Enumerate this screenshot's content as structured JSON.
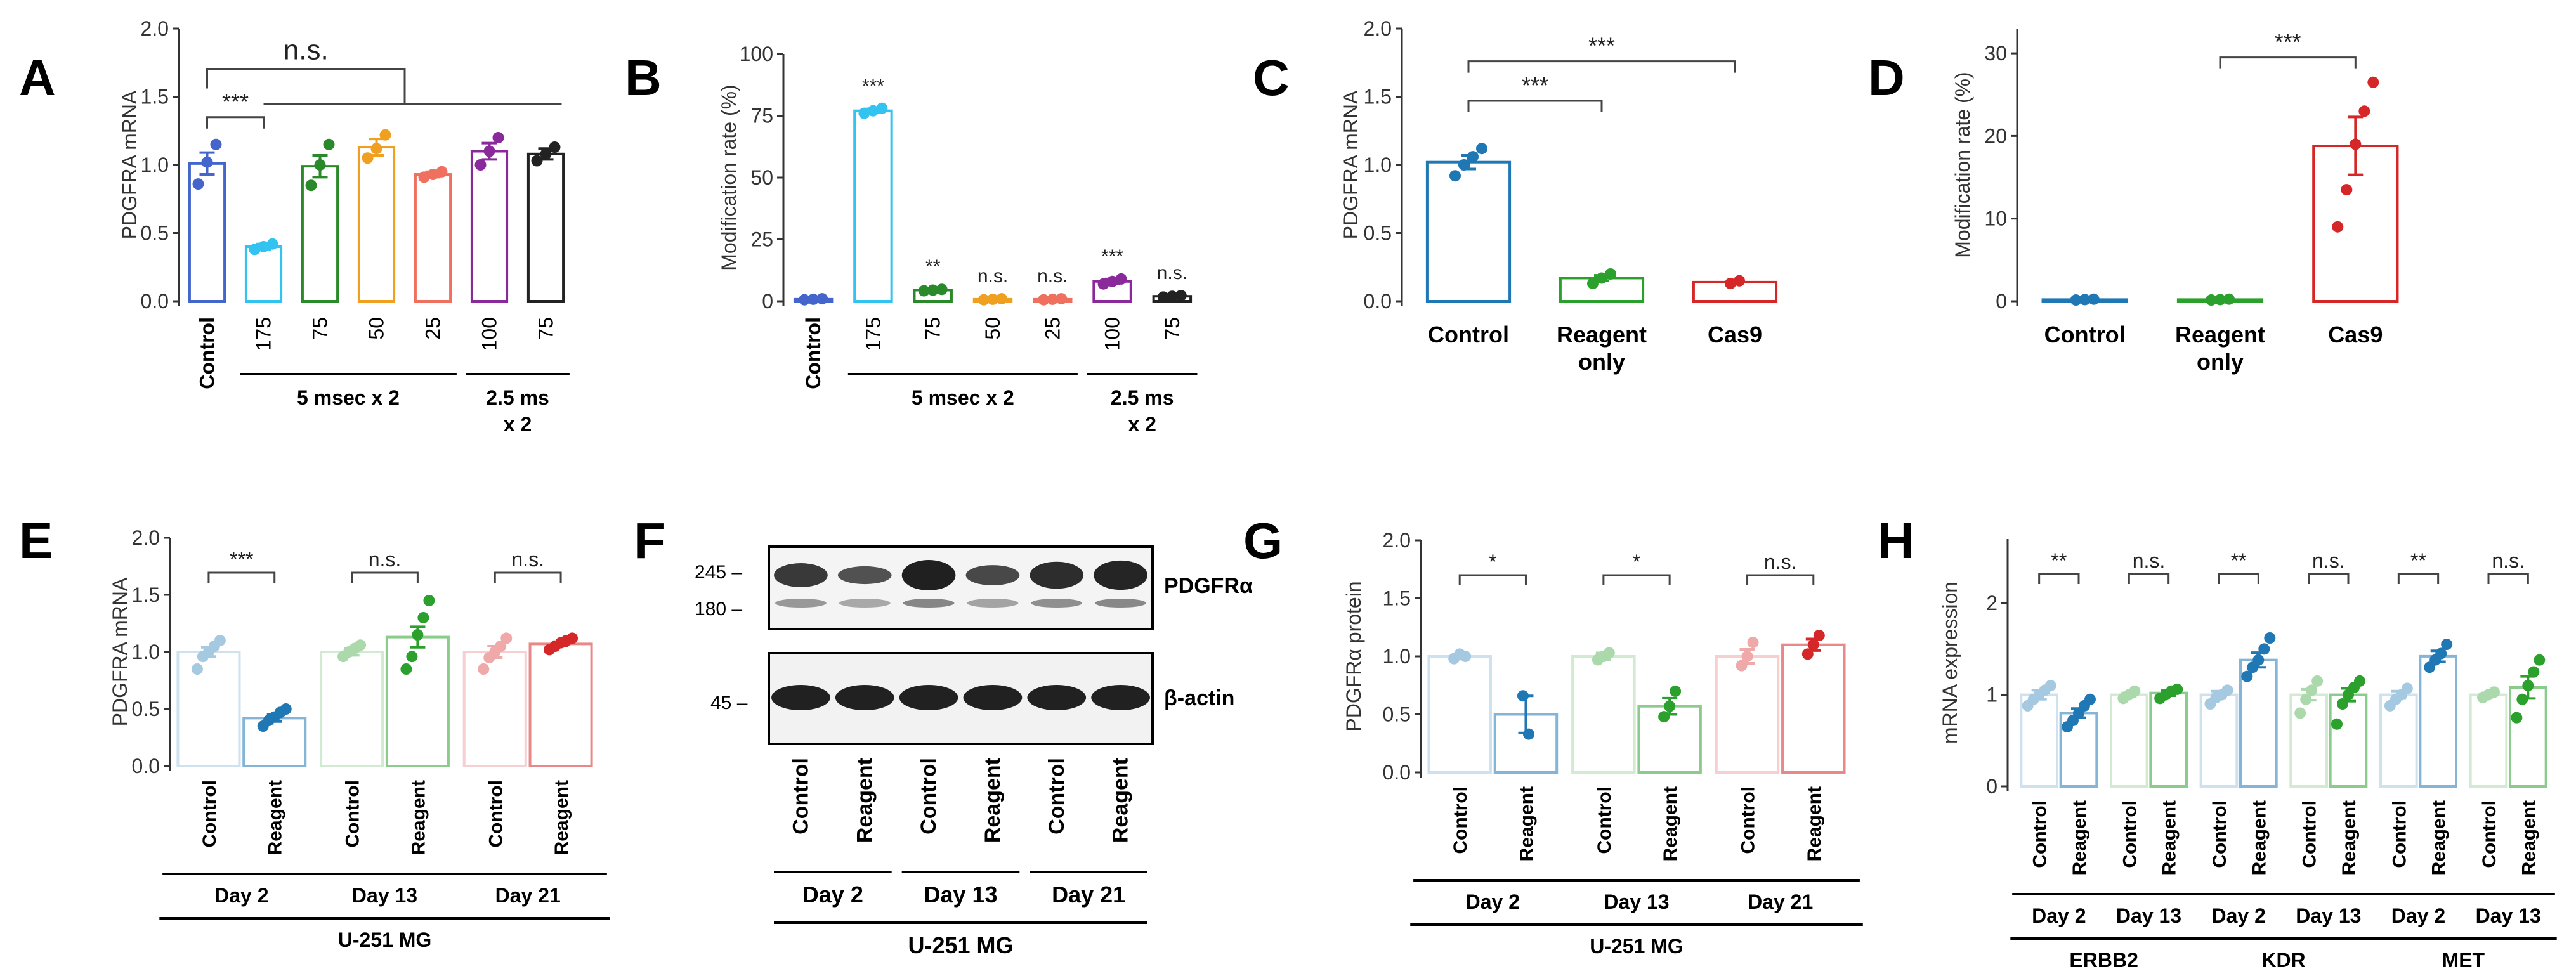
{
  "panels": [
    {
      "id": "A",
      "letter": "A",
      "x": [
        140,
        305
      ],
      "ylabel": "PDGFRA mRNA",
      "ylim": [
        0,
        2.0
      ],
      "ticks": [
        "0.0",
        "0.5",
        "1.0",
        "1.5",
        "2.0"
      ],
      "axis": {
        "y0": 475,
        "y1": 45,
        "xL": 282,
        "xR": 905
      },
      "bars": [
        {
          "label": "Control",
          "value": 1.01,
          "err": 0.08,
          "color": "#4466cc",
          "pts": [
            0.86,
            1.02,
            1.15
          ]
        },
        {
          "label": "175",
          "value": 0.4,
          "err": 0.02,
          "color": "#33c3f0",
          "pts": [
            0.38,
            0.4,
            0.42
          ]
        },
        {
          "label": "75",
          "value": 0.99,
          "err": 0.08,
          "color": "#2a8a2a",
          "pts": [
            0.85,
            1.0,
            1.15
          ]
        },
        {
          "label": "50",
          "value": 1.13,
          "err": 0.06,
          "color": "#f0a020",
          "pts": [
            1.05,
            1.12,
            1.22
          ]
        },
        {
          "label": "25",
          "value": 0.93,
          "err": 0.02,
          "color": "#f07060",
          "pts": [
            0.91,
            0.93,
            0.95
          ]
        },
        {
          "label": "100",
          "value": 1.1,
          "err": 0.06,
          "color": "#8a2a9a",
          "pts": [
            1.0,
            1.1,
            1.2
          ]
        },
        {
          "label": "75",
          "value": 1.08,
          "err": 0.04,
          "color": "#222222",
          "pts": [
            1.03,
            1.08,
            1.13
          ]
        }
      ],
      "brackets": [
        {
          "label": "***",
          "from": 0,
          "to": 1,
          "y": 1.35
        },
        {
          "label": "n.s.",
          "from": 0,
          "to": 3.5,
          "y": 1.7,
          "wide": true
        }
      ],
      "groups": [
        {
          "label": "5 msec x 2",
          "from": 1,
          "to": 4
        },
        {
          "label": "2.5 ms",
          "label2": "x 2",
          "from": 5,
          "to": 6
        }
      ],
      "firstLabelRotated": true
    },
    {
      "id": "B",
      "letter": "B",
      "ylabel": "Modification rate (%)",
      "ylim": [
        0,
        100
      ],
      "ticks": [
        "0",
        "25",
        "50",
        "75",
        "100"
      ],
      "axis": {
        "y0": 475,
        "y1": 85,
        "xL": 1235,
        "xR": 1895
      },
      "bars": [
        {
          "label": "Control",
          "value": 0.8,
          "err": 0.2,
          "color": "#4466cc",
          "pts": [
            0.6,
            0.8,
            1.0
          ],
          "sig": ""
        },
        {
          "label": "175",
          "value": 77,
          "err": 0.8,
          "color": "#33c3f0",
          "pts": [
            76,
            77,
            78
          ],
          "sig": "***"
        },
        {
          "label": "75",
          "value": 4.5,
          "err": 0.4,
          "color": "#2a8a2a",
          "pts": [
            4.2,
            4.5,
            4.8
          ],
          "sig": "**"
        },
        {
          "label": "50",
          "value": 0.8,
          "err": 0.2,
          "color": "#f0a020",
          "pts": [
            0.6,
            0.8,
            1.0
          ],
          "sig": "n.s."
        },
        {
          "label": "25",
          "value": 0.8,
          "err": 0.2,
          "color": "#f07060",
          "pts": [
            0.6,
            0.8,
            1.0
          ],
          "sig": "n.s."
        },
        {
          "label": "100",
          "value": 8,
          "err": 1.0,
          "color": "#8a2a9a",
          "pts": [
            7,
            8,
            9
          ],
          "sig": "***"
        },
        {
          "label": "75",
          "value": 2,
          "err": 0.3,
          "color": "#222222",
          "pts": [
            1.7,
            2,
            2.3
          ],
          "sig": "n.s."
        }
      ],
      "groups": [
        {
          "label": "5 msec x 2",
          "from": 1,
          "to": 4
        },
        {
          "label": "2.5 ms",
          "label2": "x 2",
          "from": 5,
          "to": 6
        }
      ],
      "firstLabelRotated": true
    },
    {
      "id": "C",
      "letter": "C",
      "ylabel": "PDGFRA mRNA",
      "ylim": [
        0,
        2.0
      ],
      "ticks": [
        "0.0",
        "0.5",
        "1.0",
        "1.5",
        "2.0"
      ],
      "axis": {
        "y0": 475,
        "y1": 45,
        "xL": 2210,
        "xR": 2840
      },
      "bars": [
        {
          "label": "Control",
          "value": 1.02,
          "err": 0.05,
          "color": "#1f77b4",
          "pts": [
            0.92,
            1.0,
            1.06,
            1.12
          ]
        },
        {
          "label": "Reagent",
          "label2": "only",
          "value": 0.17,
          "err": 0.02,
          "color": "#2ca02c",
          "pts": [
            0.13,
            0.17,
            0.2
          ]
        },
        {
          "label": "Cas9",
          "value": 0.14,
          "err": 0.01,
          "color": "#d62728",
          "pts": [
            0.13,
            0.15
          ]
        }
      ],
      "brackets": [
        {
          "label": "***",
          "from": 0,
          "to": 1,
          "y": 1.47
        },
        {
          "label": "***",
          "from": 0,
          "to": 2,
          "y": 1.76
        }
      ]
    },
    {
      "id": "D",
      "letter": "D",
      "ylabel": "Modification rate (%)",
      "ylim": [
        0,
        33
      ],
      "ticks": [
        "0",
        "10",
        "20",
        "30"
      ],
      "axis": {
        "y0": 475,
        "y1": 45,
        "xL": 3180,
        "xR": 3820
      },
      "bars": [
        {
          "label": "Control",
          "value": 0.2,
          "err": 0.05,
          "color": "#1f77b4",
          "pts": [
            0.15,
            0.2,
            0.25
          ]
        },
        {
          "label": "Reagent",
          "label2": "only",
          "value": 0.2,
          "err": 0.05,
          "color": "#2ca02c",
          "pts": [
            0.15,
            0.2,
            0.25
          ]
        },
        {
          "label": "Cas9",
          "value": 18.8,
          "err": 3.5,
          "color": "#d62728",
          "pts": [
            9,
            13.5,
            19,
            23,
            26.5
          ]
        }
      ],
      "brackets": [
        {
          "label": "***",
          "from": 1,
          "to": 2,
          "y": 29.5
        }
      ]
    }
  ],
  "lowerPanels": [
    {
      "id": "E",
      "letter": "E",
      "ylabel": "PDGFRA mRNA",
      "ylim": [
        0,
        2.0
      ],
      "ticks": [
        "0.0",
        "0.5",
        "1.0",
        "1.5",
        "2.0"
      ],
      "axis": {
        "y0": 1208,
        "y1": 848,
        "xL": 268,
        "xR": 945
      },
      "pairs": [
        {
          "day": "Day 2",
          "c": {
            "value": 1.0,
            "err": 0.04,
            "pts": [
              0.85,
              0.96,
              1.0,
              1.05,
              1.1
            ]
          },
          "r": {
            "value": 0.42,
            "err": 0.03,
            "pts": [
              0.35,
              0.4,
              0.43,
              0.47,
              0.5
            ]
          },
          "color": "#1f77b4",
          "sig": "***"
        },
        {
          "day": "Day 13",
          "c": {
            "value": 1.0,
            "err": 0.03,
            "pts": [
              0.96,
              1.0,
              1.03,
              1.06
            ]
          },
          "r": {
            "value": 1.13,
            "err": 0.09,
            "pts": [
              0.85,
              0.96,
              1.15,
              1.3,
              1.45
            ]
          },
          "color": "#2ca02c",
          "sig": "n.s."
        },
        {
          "day": "Day 21",
          "c": {
            "value": 1.0,
            "err": 0.05,
            "pts": [
              0.85,
              0.95,
              1.0,
              1.05,
              1.12
            ]
          },
          "r": {
            "value": 1.07,
            "err": 0.02,
            "pts": [
              1.02,
              1.05,
              1.08,
              1.1,
              1.12
            ]
          },
          "color": "#d62728",
          "sig": "n.s."
        }
      ],
      "cellLine": "U-251 MG"
    },
    {
      "id": "G",
      "letter": "G",
      "ylabel": "PDGFRα protein",
      "ylim": [
        0,
        2.0
      ],
      "ticks": [
        "0.0",
        "0.5",
        "1.0",
        "1.5",
        "2.0"
      ],
      "axis": {
        "y0": 1218,
        "y1": 852,
        "xL": 2240,
        "xR": 2920
      },
      "pairs": [
        {
          "day": "Day 2",
          "c": {
            "value": 1.0,
            "err": 0.02,
            "pts": [
              0.98,
              1.02,
              1.0
            ]
          },
          "r": {
            "value": 0.5,
            "err": 0.16,
            "pts": [
              0.66,
              0.33
            ]
          },
          "color": "#1f77b4",
          "sig": "*"
        },
        {
          "day": "Day 13",
          "c": {
            "value": 1.0,
            "err": 0.03,
            "pts": [
              0.97,
              1.0,
              1.03
            ]
          },
          "r": {
            "value": 0.57,
            "err": 0.07,
            "pts": [
              0.48,
              0.57,
              0.7
            ]
          },
          "color": "#2ca02c",
          "sig": "*"
        },
        {
          "day": "Day 21",
          "c": {
            "value": 1.0,
            "err": 0.06,
            "pts": [
              0.92,
              1.0,
              1.12
            ]
          },
          "r": {
            "value": 1.1,
            "err": 0.05,
            "pts": [
              1.02,
              1.1,
              1.18
            ]
          },
          "color": "#d62728",
          "sig": "n.s."
        }
      ],
      "cellLine": "U-251 MG"
    },
    {
      "id": "H",
      "letter": "H",
      "ylabel": "mRNA expression",
      "ylim": [
        0,
        2.7
      ],
      "ticks": [
        "0",
        "1",
        "2"
      ],
      "axis": {
        "y0": 1240,
        "y1": 850,
        "xL": 3165,
        "xR": 4055
      },
      "pairs": [
        {
          "day": "Day 2",
          "gene": "ERBB2",
          "c": {
            "value": 1.0,
            "err": 0.05,
            "pts": [
              0.88,
              0.95,
              1.0,
              1.05,
              1.1
            ]
          },
          "r": {
            "value": 0.8,
            "err": 0.05,
            "pts": [
              0.65,
              0.72,
              0.8,
              0.88,
              0.95
            ]
          },
          "color": "#1f77b4",
          "sig": "**"
        },
        {
          "day": "Day 13",
          "gene": "ERBB2",
          "c": {
            "value": 1.0,
            "err": 0.02,
            "pts": [
              0.96,
              1.0,
              1.04
            ]
          },
          "r": {
            "value": 1.02,
            "err": 0.03,
            "pts": [
              0.96,
              1.0,
              1.04,
              1.06
            ]
          },
          "color": "#2ca02c",
          "sig": "n.s."
        },
        {
          "day": "Day 2",
          "gene": "KDR",
          "c": {
            "value": 1.0,
            "err": 0.04,
            "pts": [
              0.9,
              0.97,
              1.0,
              1.05
            ]
          },
          "r": {
            "value": 1.38,
            "err": 0.08,
            "pts": [
              1.2,
              1.3,
              1.38,
              1.5,
              1.62
            ]
          },
          "color": "#1f77b4",
          "sig": "**"
        },
        {
          "day": "Day 13",
          "gene": "KDR",
          "c": {
            "value": 1.0,
            "err": 0.06,
            "pts": [
              0.8,
              0.95,
              1.05,
              1.15
            ]
          },
          "r": {
            "value": 1.0,
            "err": 0.07,
            "pts": [
              0.68,
              0.9,
              1.0,
              1.08,
              1.15
            ]
          },
          "color": "#2ca02c",
          "sig": "n.s."
        },
        {
          "day": "Day 2",
          "gene": "MET",
          "c": {
            "value": 1.0,
            "err": 0.04,
            "pts": [
              0.88,
              0.95,
              1.0,
              1.07
            ]
          },
          "r": {
            "value": 1.42,
            "err": 0.06,
            "pts": [
              1.3,
              1.38,
              1.45,
              1.55
            ]
          },
          "color": "#1f77b4",
          "sig": "**"
        },
        {
          "day": "Day 13",
          "gene": "MET",
          "c": {
            "value": 1.0,
            "err": 0.02,
            "pts": [
              0.97,
              1.0,
              1.03
            ]
          },
          "r": {
            "value": 1.08,
            "err": 0.12,
            "pts": [
              0.75,
              0.95,
              1.1,
              1.25,
              1.38
            ]
          },
          "color": "#2ca02c",
          "sig": "n.s."
        }
      ],
      "genes": [
        "ERBB2",
        "KDR",
        "MET"
      ]
    }
  ],
  "blot": {
    "letter": "F",
    "markers_top": [
      "245 –",
      "180 –"
    ],
    "marker_bottom": "45 –",
    "label_top": "PDGFRα",
    "label_bottom": "β-actin",
    "lanes": [
      "Control",
      "Reagent",
      "Control",
      "Reagent",
      "Control",
      "Reagent"
    ],
    "days": [
      "Day 2",
      "Day 13",
      "Day 21"
    ],
    "cellLine": "U-251 MG"
  },
  "chart_data": [
    {
      "type": "bar",
      "title": "A",
      "ylabel": "PDGFRA mRNA",
      "ylim": [
        0,
        2.0
      ],
      "categories": [
        "Control",
        "175",
        "75",
        "50",
        "25",
        "100",
        "75"
      ],
      "values": [
        1.01,
        0.4,
        0.99,
        1.13,
        0.93,
        1.1,
        1.08
      ],
      "groups": [
        "5 msec x 2",
        "2.5 ms x 2"
      ],
      "annotations": [
        "***",
        "n.s."
      ]
    },
    {
      "type": "bar",
      "title": "B",
      "ylabel": "Modification rate (%)",
      "ylim": [
        0,
        100
      ],
      "categories": [
        "Control",
        "175",
        "75",
        "50",
        "25",
        "100",
        "75"
      ],
      "values": [
        0.8,
        77,
        4.5,
        0.8,
        0.8,
        8,
        2
      ],
      "annotations": [
        "***",
        "**",
        "n.s.",
        "n.s.",
        "***",
        "n.s."
      ]
    },
    {
      "type": "bar",
      "title": "C",
      "ylabel": "PDGFRA mRNA",
      "ylim": [
        0,
        2.0
      ],
      "categories": [
        "Control",
        "Reagent only",
        "Cas9"
      ],
      "values": [
        1.02,
        0.17,
        0.14
      ],
      "annotations": [
        "***",
        "***"
      ]
    },
    {
      "type": "bar",
      "title": "D",
      "ylabel": "Modification rate (%)",
      "ylim": [
        0,
        33
      ],
      "categories": [
        "Control",
        "Reagent only",
        "Cas9"
      ],
      "values": [
        0.2,
        0.2,
        18.8
      ],
      "annotations": [
        "***"
      ]
    },
    {
      "type": "bar",
      "title": "E",
      "ylabel": "PDGFRA mRNA",
      "ylim": [
        0,
        2.0
      ],
      "categories": [
        "Day 2 Control",
        "Day 2 Reagent",
        "Day 13 Control",
        "Day 13 Reagent",
        "Day 21 Control",
        "Day 21 Reagent"
      ],
      "values": [
        1.0,
        0.42,
        1.0,
        1.13,
        1.0,
        1.07
      ],
      "annotations": [
        "***",
        "n.s.",
        "n.s."
      ]
    },
    {
      "type": "bar",
      "title": "G",
      "ylabel": "PDGFRα protein",
      "ylim": [
        0,
        2.0
      ],
      "categories": [
        "Day 2 Control",
        "Day 2 Reagent",
        "Day 13 Control",
        "Day 13 Reagent",
        "Day 21 Control",
        "Day 21 Reagent"
      ],
      "values": [
        1.0,
        0.5,
        1.0,
        0.57,
        1.0,
        1.1
      ],
      "annotations": [
        "*",
        "*",
        "n.s."
      ]
    },
    {
      "type": "bar",
      "title": "H",
      "ylabel": "mRNA expression",
      "ylim": [
        0,
        2.7
      ],
      "series": [
        {
          "name": "ERBB2",
          "values": [
            1.0,
            0.8,
            1.0,
            1.02
          ]
        },
        {
          "name": "KDR",
          "values": [
            1.0,
            1.38,
            1.0,
            1.0
          ]
        },
        {
          "name": "MET",
          "values": [
            1.0,
            1.42,
            1.0,
            1.08
          ]
        }
      ],
      "categories": [
        "Day 2 Control",
        "Day 2 Reagent",
        "Day 13 Control",
        "Day 13 Reagent"
      ],
      "annotations": [
        "**",
        "n.s.",
        "**",
        "n.s.",
        "**",
        "n.s."
      ]
    }
  ]
}
